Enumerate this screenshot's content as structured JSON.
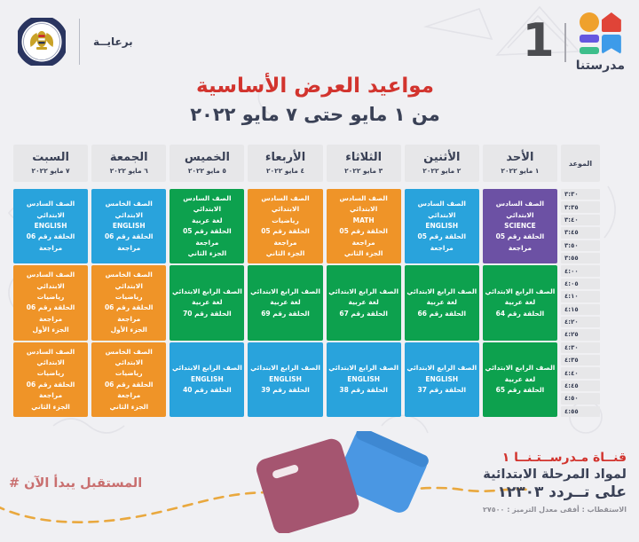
{
  "colors": {
    "red": "#D2342E",
    "navy": "#3A4156",
    "cellgray": "#E7E7E9",
    "purple": "#6C51A4",
    "blue": "#29A3DC",
    "orange": "#EF9428",
    "green": "#0DA14E",
    "hashtag-pink": "#C96F6F",
    "logo-orange": "#EFA12D",
    "logo-red": "#E04438",
    "logo-purple": "#6456E0",
    "logo-green": "#3DBE8B",
    "logo-blue": "#3D9BE9",
    "dash-line": "#E9A83E",
    "book-maroon": "#A55570",
    "book-blue": "#4A97E3"
  },
  "header": {
    "sponsor_label": "برعايــة",
    "channel_logo": {
      "number": "1",
      "name": "مدرستنا"
    },
    "title": "مواعيد العرض الأساسية",
    "subtitle": "من ١ مايو حتى ٧ مايو ٢٠٢٢"
  },
  "schedule": {
    "time_header": "الموعد",
    "times": [
      "٣:٣٠",
      "٣:٣٥",
      "٣:٤٠",
      "٣:٤٥",
      "٣:٥٠",
      "٣:٥٥",
      "٤:٠٠",
      "٤:٠٥",
      "٤:١٠",
      "٤:١٥",
      "٤:٢٠",
      "٤:٢٥",
      "٤:٣٠",
      "٤:٣٥",
      "٤:٤٠",
      "٤:٤٥",
      "٤:٥٠",
      "٤:٥٥"
    ],
    "days": [
      {
        "name": "الأحد",
        "date": "١ مايو ٢٠٢٢",
        "cells": [
          {
            "color": "purple",
            "lines": [
              "الصف السادس الابتدائي",
              "SCIENCE",
              "الحلقة رقم 05 مراجعة"
            ]
          },
          {
            "color": "green",
            "lines": [
              "الصف الرابع الابتدائي",
              "لغة عربية",
              "الحلقة رقم 64"
            ]
          },
          {
            "color": "green",
            "lines": [
              "الصف الرابع الابتدائي",
              "لغة عربية",
              "الحلقة رقم 65"
            ]
          }
        ]
      },
      {
        "name": "الأثنين",
        "date": "٢ مايو ٢٠٢٢",
        "cells": [
          {
            "color": "blue",
            "lines": [
              "الصف السادس الابتدائي",
              "ENGLISH",
              "الحلقة رقم 05 مراجعة"
            ]
          },
          {
            "color": "green",
            "lines": [
              "الصف الرابع الابتدائي",
              "لغة عربية",
              "الحلقة رقم 66"
            ]
          },
          {
            "color": "blue",
            "lines": [
              "الصف الرابع الابتدائي",
              "ENGLISH",
              "الحلقة رقم 37"
            ]
          }
        ]
      },
      {
        "name": "الثلاثاء",
        "date": "٣ مايو ٢٠٢٢",
        "cells": [
          {
            "color": "orange",
            "lines": [
              "الصف السادس الابتدائي",
              "MATH",
              "الحلقة رقم 05 مراجعة",
              "الجزء الثاني"
            ]
          },
          {
            "color": "green",
            "lines": [
              "الصف الرابع الابتدائي",
              "لغة عربية",
              "الحلقة رقم 67"
            ]
          },
          {
            "color": "blue",
            "lines": [
              "الصف الرابع الابتدائي",
              "ENGLISH",
              "الحلقة رقم 38"
            ]
          }
        ]
      },
      {
        "name": "الأربعاء",
        "date": "٤ مايو ٢٠٢٢",
        "cells": [
          {
            "color": "orange",
            "lines": [
              "الصف السادس الابتدائي",
              "رياضيات",
              "الحلقة رقم 05 مراجعة",
              "الجزء الثاني"
            ]
          },
          {
            "color": "green",
            "lines": [
              "الصف الرابع الابتدائي",
              "لغة عربية",
              "الحلقة رقم 69"
            ]
          },
          {
            "color": "blue",
            "lines": [
              "الصف الرابع الابتدائي",
              "ENGLISH",
              "الحلقة رقم 39"
            ]
          }
        ]
      },
      {
        "name": "الخميس",
        "date": "٥ مايو ٢٠٢٢",
        "cells": [
          {
            "color": "green",
            "lines": [
              "الصف السادس الابتدائي",
              "لغة عربية",
              "الحلقة رقم 05 مراجعة",
              "الجزء الثاني"
            ]
          },
          {
            "color": "green",
            "lines": [
              "الصف الرابع الابتدائي",
              "لغة عربية",
              "الحلقة رقم 70"
            ]
          },
          {
            "color": "blue",
            "lines": [
              "الصف الرابع الابتدائي",
              "ENGLISH",
              "الحلقة رقم 40"
            ]
          }
        ]
      },
      {
        "name": "الجمعة",
        "date": "٦ مايو ٢٠٢٢",
        "cells": [
          {
            "color": "blue",
            "lines": [
              "الصف الخامس الابتدائي",
              "ENGLISH",
              "الحلقة رقم 06 مراجعة"
            ]
          },
          {
            "color": "orange",
            "lines": [
              "الصف الخامس الابتدائي",
              "رياضيات",
              "الحلقة رقم 06 مراجعة",
              "الجزء الأول"
            ]
          },
          {
            "color": "orange",
            "lines": [
              "الصف الخامس الابتدائي",
              "رياضيات",
              "الحلقة رقم 06 مراجعة",
              "الجزء الثاني"
            ]
          }
        ]
      },
      {
        "name": "السبت",
        "date": "٧ مايو ٢٠٢٢",
        "cells": [
          {
            "color": "blue",
            "lines": [
              "الصف السادس الابتدائي",
              "ENGLISH",
              "الحلقة رقم 06 مراجعة"
            ]
          },
          {
            "color": "orange",
            "lines": [
              "الصف السادس الابتدائي",
              "رياضيات",
              "الحلقة رقم 06 مراجعة",
              "الجزء الأول"
            ]
          },
          {
            "color": "orange",
            "lines": [
              "الصف السادس الابتدائي",
              "رياضيات",
              "الحلقة رقم 06 مراجعة",
              "الجزء الثاني"
            ]
          }
        ]
      }
    ]
  },
  "footer": {
    "hashtag_symbol": "#",
    "hashtag_text": "المستقبل يبدأ الآن",
    "channel_line1": "قنــاة مـدرســتـنــا ١",
    "channel_line2": "لمواد المرحلة الابتدائية",
    "channel_line3": "على تــردد ١٢٣٠٣",
    "channel_line4": "الاستقطاب : أفقى    معدل الترميز : ٢٧٥٠٠"
  }
}
